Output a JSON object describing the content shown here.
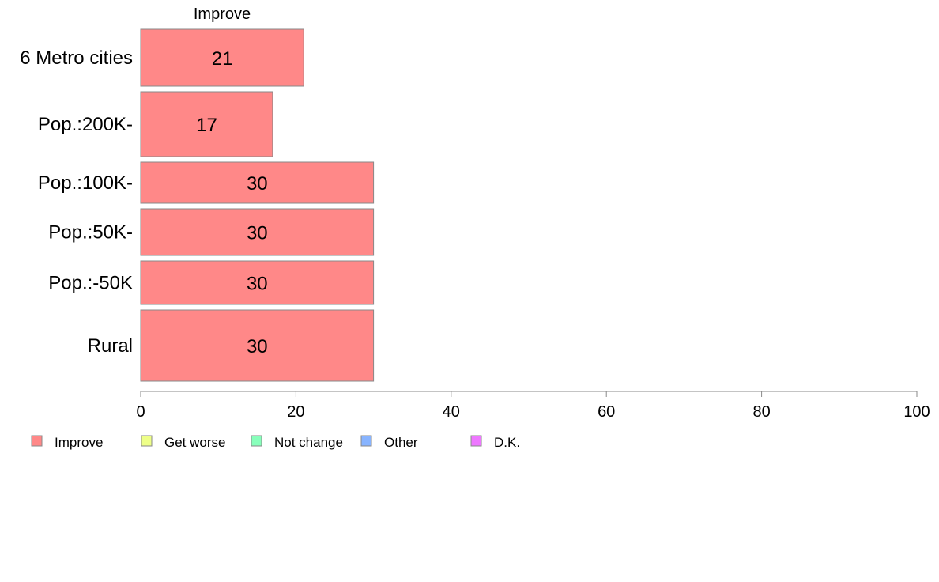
{
  "chart_data": {
    "type": "bar",
    "orientation": "horizontal",
    "stacked": true,
    "series_title": "Improve",
    "categories": [
      "6 Metro cities",
      "Pop.:200K-",
      "Pop.:100K-",
      "Pop.:50K-",
      "Pop.:-50K",
      "Rural"
    ],
    "series": [
      {
        "name": "Improve",
        "values": [
          21,
          17,
          30,
          30,
          30,
          30
        ],
        "color": "#ff8888",
        "labels": [
          "21",
          "17",
          "30",
          "30",
          "30",
          "30"
        ]
      }
    ],
    "xlim": [
      0,
      100
    ],
    "xticks": [
      "0",
      "20",
      "40",
      "60",
      "80",
      "100"
    ],
    "xtick_values": [
      0,
      20,
      40,
      60,
      80,
      100
    ],
    "grid": false,
    "legend_placement": "bottom-left",
    "legend": [
      {
        "label": "Improve",
        "color": "#ff8888"
      },
      {
        "label": "Get worse",
        "color": "#eeff88"
      },
      {
        "label": "Not change",
        "color": "#88ffbb"
      },
      {
        "label": "Other",
        "color": "#88b4ff"
      },
      {
        "label": "D.K.",
        "color": "#ee77ff"
      }
    ],
    "bar_stroke": "#888888",
    "axis_color": "#888888"
  }
}
